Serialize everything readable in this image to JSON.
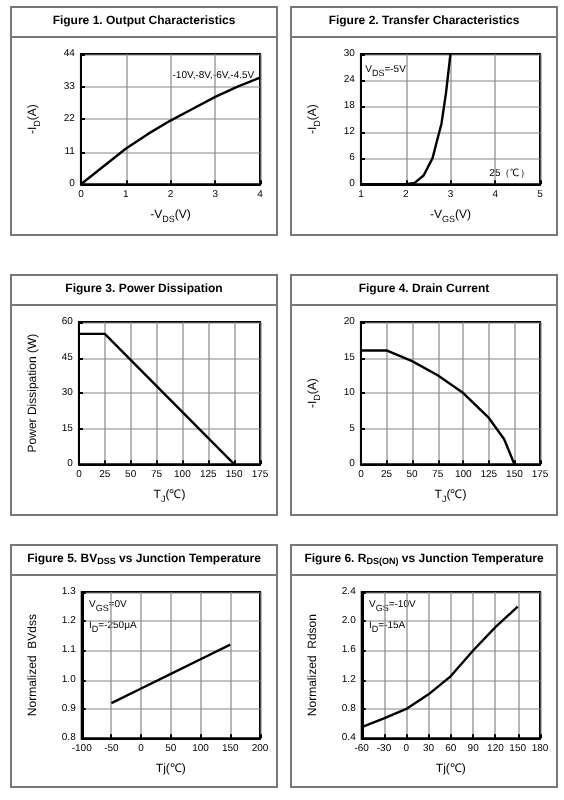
{
  "chart_data": [
    {
      "type": "line",
      "title": "Figure 1. Output Characteristics",
      "xlabel": "-V$_{DS}$(V)",
      "ylabel": "-I$_{D}$(A)",
      "annotations": [
        "-10V,-8V,-6V,-4.5V"
      ],
      "x": [
        0,
        0.5,
        1,
        1.5,
        2,
        2.5,
        3,
        3.5,
        4
      ],
      "values": [
        0,
        6,
        12,
        17,
        21.5,
        25.5,
        29.5,
        33,
        36
      ],
      "color": "#000000",
      "xlim": [
        0,
        4
      ],
      "xticks": [
        0,
        1,
        2,
        3,
        4
      ],
      "ylim": [
        0,
        44
      ],
      "yticks": [
        0,
        11,
        22,
        33,
        44
      ],
      "grid": true,
      "marker": "none"
    },
    {
      "type": "line",
      "title": "Figure 2. Transfer Characteristics",
      "xlabel": "-V$_{GS}$(V)",
      "ylabel": "-I$_{D}$(A)",
      "annotations": [
        "V$_{DS}$=-5V",
        "25（℃）"
      ],
      "x": [
        1,
        1.5,
        2,
        2.2,
        2.4,
        2.6,
        2.7,
        2.8,
        2.9,
        3
      ],
      "values": [
        0,
        0,
        0,
        0.3,
        2,
        6,
        10,
        14,
        21,
        30
      ],
      "color": "#000000",
      "xlim": [
        1,
        5
      ],
      "xticks": [
        1,
        2,
        3,
        4,
        5
      ],
      "ylim": [
        0,
        30
      ],
      "yticks": [
        0,
        6,
        12,
        18,
        24,
        30
      ],
      "grid": true,
      "marker": "none"
    },
    {
      "type": "line",
      "title": "Figure 3. Power Dissipation",
      "xlabel": "T$_{J}$(℃)",
      "ylabel": "Power Dissipation (W)",
      "x": [
        0,
        25,
        150
      ],
      "values": [
        55,
        55,
        0
      ],
      "color": "#000000",
      "xlim": [
        0,
        175
      ],
      "xticks": [
        0,
        25,
        50,
        75,
        100,
        125,
        150,
        175
      ],
      "ylim": [
        0,
        60
      ],
      "yticks": [
        0,
        15,
        30,
        45,
        60
      ],
      "grid": true,
      "marker": "none"
    },
    {
      "type": "line",
      "title": "Figure 4. Drain Current",
      "xlabel": "T$_{J}$(℃)",
      "ylabel": "-I$_{D}$(A)",
      "x": [
        0,
        25,
        50,
        75,
        100,
        125,
        140,
        150
      ],
      "values": [
        16,
        16,
        14.5,
        12.5,
        10,
        6.5,
        3.5,
        0
      ],
      "color": "#000000",
      "xlim": [
        0,
        175
      ],
      "xticks": [
        0,
        25,
        50,
        75,
        100,
        125,
        150,
        175
      ],
      "ylim": [
        0,
        20
      ],
      "yticks": [
        0,
        5,
        10,
        15,
        20
      ],
      "grid": true,
      "marker": "none"
    },
    {
      "type": "line",
      "title": "Figure 5. BV$_{DSS}$ vs Junction Temperature",
      "xlabel": "Tj(℃)",
      "ylabel": "Normalized  BVdss",
      "annotations": [
        "V$_{GS}$=0V",
        "I$_{D}$=-250μA"
      ],
      "x": [
        -50,
        0,
        50,
        100,
        150
      ],
      "values": [
        0.92,
        0.97,
        1.02,
        1.07,
        1.12
      ],
      "color": "#000000",
      "xlim": [
        -100,
        200
      ],
      "xticks": [
        -100,
        -50,
        0,
        50,
        100,
        150,
        200
      ],
      "ylim": [
        0.8,
        1.3
      ],
      "yticks": [
        0.8,
        0.9,
        {
          "value": 1,
          "label": "1.0"
        },
        1.1,
        1.2,
        1.3
      ],
      "grid": true,
      "marker": "none"
    },
    {
      "type": "line",
      "title": "Figure 6. R$_{DS(ON)}$ vs Junction Temperature",
      "xlabel": "Tj(℃)",
      "ylabel": "Normalized  Rdson",
      "annotations": [
        "V$_{GS}$=-10V",
        "I$_{D}$=-15A"
      ],
      "x": [
        -60,
        -30,
        0,
        30,
        60,
        90,
        120,
        150
      ],
      "values": [
        0.55,
        0.67,
        0.8,
        1.0,
        1.25,
        1.6,
        1.92,
        2.2
      ],
      "color": "#000000",
      "xlim": [
        -60,
        180
      ],
      "xticks": [
        -60,
        -30,
        0,
        30,
        60,
        90,
        120,
        150,
        180
      ],
      "ylim": [
        0.4,
        2.4
      ],
      "yticks": [
        0.4,
        0.8,
        1.2,
        1.6,
        {
          "value": 2,
          "label": "2.0"
        },
        2.4
      ],
      "grid": true,
      "marker": "none"
    }
  ]
}
